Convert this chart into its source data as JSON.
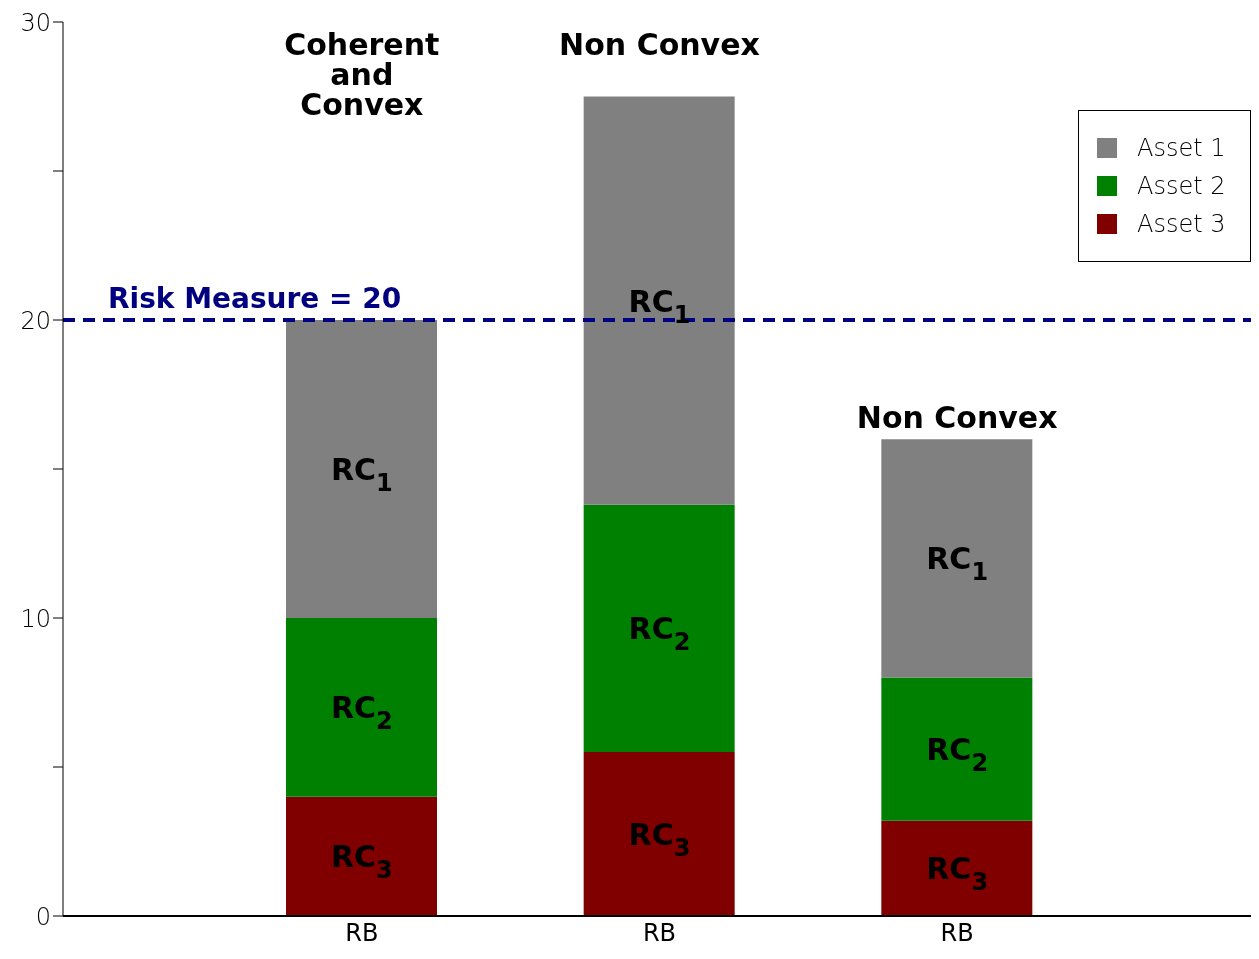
{
  "chart_data": {
    "type": "bar",
    "stacked": true,
    "categories": [
      "RB",
      "RB",
      "RB"
    ],
    "series": [
      {
        "name": "Asset 3",
        "color": "#800000",
        "values": [
          4,
          5.5,
          3.2
        ]
      },
      {
        "name": "Asset 2",
        "color": "#008000",
        "values": [
          6,
          8.3,
          4.8
        ]
      },
      {
        "name": "Asset 1",
        "color": "#808080",
        "values": [
          10,
          13.7,
          8
        ]
      }
    ],
    "ylim": [
      0,
      30
    ],
    "yticks": [
      0,
      {
        "value": 5,
        "label": null
      },
      10,
      {
        "value": 15,
        "label": null
      },
      20,
      {
        "value": 25,
        "label": null
      },
      30
    ],
    "grid": false,
    "legend": "top right",
    "ref_lines": [
      {
        "axis": "y",
        "value": 20,
        "label": "Risk Measure = 20",
        "color": "#000080",
        "line_style": "dashed"
      }
    ],
    "annotations": [
      "Coherent\nand\nConvex",
      "Non Convex",
      "Non Convex",
      "RC$_{1}$",
      "RC$_{1}$",
      "RC$_{1}$",
      "RC$_{2}$",
      "RC$_{2}$",
      "RC$_{2}$",
      "RC$_{3}$",
      "RC$_{3}$",
      "RC$_{3}$"
    ]
  }
}
